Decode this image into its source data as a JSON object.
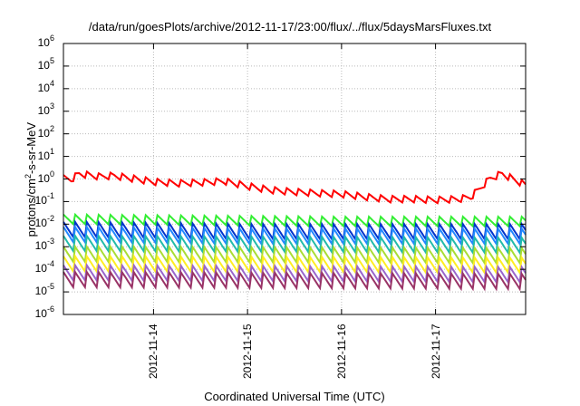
{
  "chart_data": {
    "type": "line",
    "title": "/data/run/goesPlots/archive/2012-11-17/23:00/flux/../flux/5daysMarsFluxes.txt",
    "xlabel": "Coordinated Universal Time (UTC)",
    "ylabel_parts": [
      "protons/cm",
      "2",
      "-s-sr-MeV"
    ],
    "y_scale": "log",
    "ylim": [
      1e-06,
      1000000.0
    ],
    "y_ticks": [
      {
        "base": "10",
        "exp": "-6"
      },
      {
        "base": "10",
        "exp": "-5"
      },
      {
        "base": "10",
        "exp": "-4"
      },
      {
        "base": "10",
        "exp": "-3"
      },
      {
        "base": "10",
        "exp": "-2"
      },
      {
        "base": "10",
        "exp": "-1"
      },
      {
        "base": "10",
        "exp": "0"
      },
      {
        "base": "10",
        "exp": "1"
      },
      {
        "base": "10",
        "exp": "2"
      },
      {
        "base": "10",
        "exp": "3"
      },
      {
        "base": "10",
        "exp": "4"
      },
      {
        "base": "10",
        "exp": "5"
      },
      {
        "base": "10",
        "exp": "6"
      }
    ],
    "x_range_days": [
      "2012-11-13T01:00",
      "2012-11-17T23:00"
    ],
    "x_ticks": [
      "2012-11-14",
      "2012-11-15",
      "2012-11-16",
      "2012-11-17"
    ],
    "grid": true,
    "series": [
      {
        "color": "#ff0000",
        "points": [
          [
            "2012-11-13T01:00",
            1.0
          ],
          [
            "2012-11-13T03:00",
            0.9
          ],
          [
            "2012-11-13T05:00",
            1.6
          ],
          [
            "2012-11-13T10:00",
            1.2
          ],
          [
            "2012-11-13T14:00",
            1.3
          ],
          [
            "2012-11-13T20:00",
            0.9
          ],
          [
            "2012-11-14T00:00",
            0.7
          ],
          [
            "2012-11-14T06:00",
            0.6
          ],
          [
            "2012-11-14T12:00",
            0.65
          ],
          [
            "2012-11-14T18:00",
            0.75
          ],
          [
            "2012-11-15T00:00",
            0.45
          ],
          [
            "2012-11-15T06:00",
            0.3
          ],
          [
            "2012-11-15T12:00",
            0.25
          ],
          [
            "2012-11-15T18:00",
            0.22
          ],
          [
            "2012-11-16T00:00",
            0.2
          ],
          [
            "2012-11-16T06:00",
            0.15
          ],
          [
            "2012-11-16T12:00",
            0.12
          ],
          [
            "2012-11-16T18:00",
            0.12
          ],
          [
            "2012-11-17T00:00",
            0.11
          ],
          [
            "2012-11-17T06:00",
            0.12
          ],
          [
            "2012-11-17T09:00",
            0.15
          ],
          [
            "2012-11-17T14:00",
            1.0
          ],
          [
            "2012-11-17T17:00",
            1.6
          ],
          [
            "2012-11-17T23:00",
            0.5
          ]
        ],
        "sawtooth_amp": 0.35
      },
      {
        "color": "#33ee33",
        "points": [
          [
            "2012-11-13T01:00",
            0.015
          ],
          [
            "2012-11-15T00:00",
            0.013
          ],
          [
            "2012-11-16T00:00",
            0.012
          ],
          [
            "2012-11-17T23:00",
            0.012
          ]
        ],
        "sawtooth_amp": 0.5
      },
      {
        "color": "#0033cc",
        "points": [
          [
            "2012-11-13T01:00",
            0.005
          ],
          [
            "2012-11-15T00:00",
            0.004
          ],
          [
            "2012-11-17T23:00",
            0.004
          ]
        ],
        "sawtooth_amp": 0.8
      },
      {
        "color": "#2288ff",
        "points": [
          [
            "2012-11-13T01:00",
            0.003
          ],
          [
            "2012-11-15T00:00",
            0.0025
          ],
          [
            "2012-11-17T23:00",
            0.0025
          ]
        ],
        "sawtooth_amp": 0.8
      },
      {
        "color": "#22bbaa",
        "points": [
          [
            "2012-11-13T01:00",
            0.0012
          ],
          [
            "2012-11-17T23:00",
            0.001
          ]
        ],
        "sawtooth_amp": 0.8
      },
      {
        "color": "#aadd33",
        "points": [
          [
            "2012-11-13T01:00",
            0.0004
          ],
          [
            "2012-11-17T23:00",
            0.00035
          ]
        ],
        "sawtooth_amp": 0.8
      },
      {
        "color": "#ffee22",
        "points": [
          [
            "2012-11-13T01:00",
            0.00015
          ],
          [
            "2012-11-17T23:00",
            0.00013
          ]
        ],
        "sawtooth_amp": 0.8
      },
      {
        "color": "#9966cc",
        "points": [
          [
            "2012-11-13T01:00",
            6e-05
          ],
          [
            "2012-11-17T23:00",
            5e-05
          ]
        ],
        "sawtooth_amp": 0.8
      },
      {
        "color": "#993366",
        "points": [
          [
            "2012-11-13T01:00",
            3e-05
          ],
          [
            "2012-11-17T23:00",
            2.5e-05
          ]
        ],
        "sawtooth_amp": 0.8
      }
    ]
  }
}
